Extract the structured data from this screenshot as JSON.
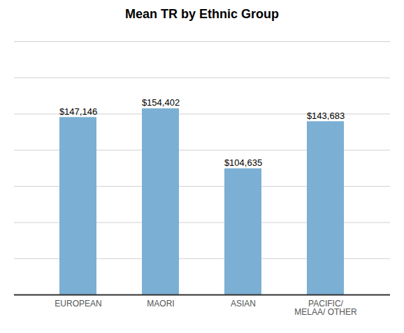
{
  "chart_data": {
    "type": "bar",
    "title": "Mean TR by Ethnic Group",
    "categories": [
      "EUROPEAN",
      "MAORI",
      "ASIAN",
      "PACIFIC/\nMELAA/ OTHER"
    ],
    "values": [
      147146,
      154402,
      104635,
      143683
    ],
    "value_labels": [
      "$147,146",
      "$154,402",
      "$104,635",
      "$143,683"
    ],
    "data_labels": true,
    "color": "#7BAFD4",
    "ylim": [
      0,
      210000
    ],
    "yticks": [
      0,
      30000,
      60000,
      90000,
      120000,
      150000,
      180000,
      210000
    ],
    "grid": true,
    "tick_labels": "x"
  }
}
